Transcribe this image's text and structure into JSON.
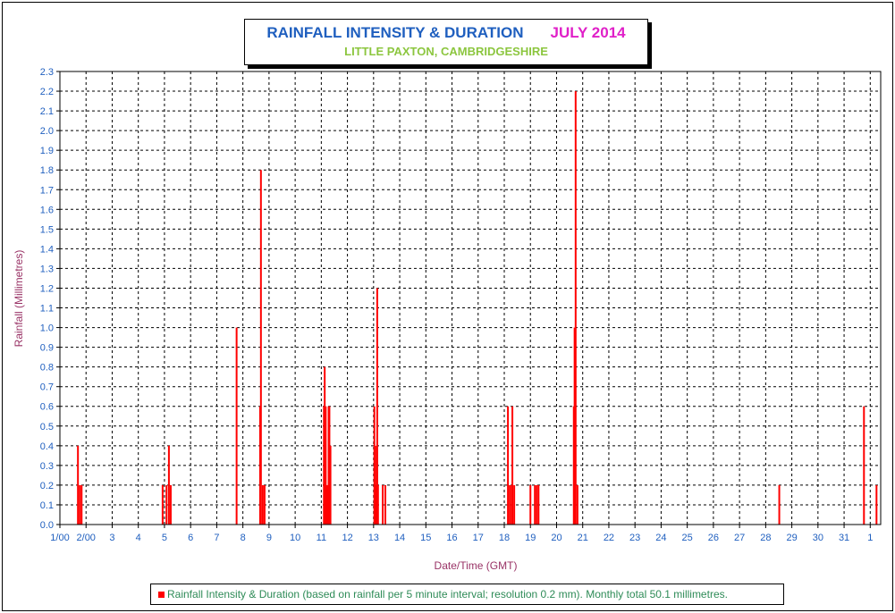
{
  "title": {
    "main": "RAINFALL INTENSITY & DURATION",
    "month": "JULY 2014",
    "subtitle": "LITTLE PAXTON, CAMBRIDGESHIRE"
  },
  "legend": {
    "text": "Rainfall Intensity & Duration (based on rainfall per 5 minute interval; resolution 0.2 mm). Monthly total 50.1 millimetres."
  },
  "colors": {
    "bars": "#ff0000",
    "title_blue": "#1f5fbf",
    "title_magenta": "#e020c8",
    "subtitle_green": "#8cc63f",
    "tick_blue": "#1f5fbf",
    "axis_label": "#993366",
    "legend_text": "#2e8b57"
  },
  "chart_data": {
    "type": "bar",
    "title": "RAINFALL INTENSITY & DURATION JULY 2014",
    "subtitle": "LITTLE PAXTON, CAMBRIDGESHIRE",
    "xlabel": "Date/Time (GMT)",
    "ylabel": "Rainfall (Millimetres)",
    "ylim": [
      0,
      2.3
    ],
    "yticks": [
      0.0,
      0.1,
      0.2,
      0.3,
      0.4,
      0.5,
      0.6,
      0.7,
      0.8,
      0.9,
      1.0,
      1.1,
      1.2,
      1.3,
      1.4,
      1.5,
      1.6,
      1.7,
      1.8,
      1.9,
      2.0,
      2.1,
      2.2,
      2.3
    ],
    "xlim_days": [
      1,
      32.4
    ],
    "xticks": [
      {
        "day": 1,
        "label": "1/00"
      },
      {
        "day": 2,
        "label": "2/00"
      },
      {
        "day": 3,
        "label": "3"
      },
      {
        "day": 4,
        "label": "4"
      },
      {
        "day": 5,
        "label": "5"
      },
      {
        "day": 6,
        "label": "6"
      },
      {
        "day": 7,
        "label": "7"
      },
      {
        "day": 8,
        "label": "8"
      },
      {
        "day": 9,
        "label": "9"
      },
      {
        "day": 10,
        "label": "10"
      },
      {
        "day": 11,
        "label": "11"
      },
      {
        "day": 12,
        "label": "12"
      },
      {
        "day": 13,
        "label": "13"
      },
      {
        "day": 14,
        "label": "14"
      },
      {
        "day": 15,
        "label": "15"
      },
      {
        "day": 16,
        "label": "16"
      },
      {
        "day": 17,
        "label": "17"
      },
      {
        "day": 18,
        "label": "18"
      },
      {
        "day": 19,
        "label": "19"
      },
      {
        "day": 20,
        "label": "20"
      },
      {
        "day": 21,
        "label": "21"
      },
      {
        "day": 22,
        "label": "22"
      },
      {
        "day": 23,
        "label": "23"
      },
      {
        "day": 24,
        "label": "24"
      },
      {
        "day": 25,
        "label": "25"
      },
      {
        "day": 26,
        "label": "26"
      },
      {
        "day": 27,
        "label": "27"
      },
      {
        "day": 28,
        "label": "28"
      },
      {
        "day": 29,
        "label": "29"
      },
      {
        "day": 30,
        "label": "30"
      },
      {
        "day": 31,
        "label": "31"
      },
      {
        "day": 32,
        "label": "1"
      }
    ],
    "grid": true,
    "legend_position": "bottom",
    "series": [
      {
        "name": "Rainfall Intensity & Duration",
        "points": [
          [
            1.69,
            0.4
          ],
          [
            1.76,
            0.2
          ],
          [
            1.83,
            0.2
          ],
          [
            4.93,
            0.2
          ],
          [
            5.08,
            0.2
          ],
          [
            5.17,
            0.4
          ],
          [
            5.24,
            0.2
          ],
          [
            7.76,
            1.0
          ],
          [
            8.66,
            0.6
          ],
          [
            8.69,
            1.8
          ],
          [
            8.76,
            0.2
          ],
          [
            8.83,
            0.2
          ],
          [
            11.1,
            0.6
          ],
          [
            11.13,
            0.8
          ],
          [
            11.17,
            0.6
          ],
          [
            11.2,
            0.2
          ],
          [
            11.24,
            0.2
          ],
          [
            11.28,
            0.6
          ],
          [
            11.31,
            0.6
          ],
          [
            11.35,
            0.4
          ],
          [
            13.03,
            0.6
          ],
          [
            13.07,
            0.4
          ],
          [
            13.1,
            0.2
          ],
          [
            13.14,
            1.2
          ],
          [
            13.17,
            0.2
          ],
          [
            13.35,
            0.2
          ],
          [
            13.45,
            0.2
          ],
          [
            18.14,
            0.6
          ],
          [
            18.21,
            0.2
          ],
          [
            18.28,
            0.2
          ],
          [
            18.31,
            0.6
          ],
          [
            18.38,
            0.2
          ],
          [
            19.0,
            0.2
          ],
          [
            19.17,
            0.2
          ],
          [
            19.24,
            0.2
          ],
          [
            19.31,
            0.2
          ],
          [
            20.66,
            0.6
          ],
          [
            20.69,
            1.0
          ],
          [
            20.73,
            2.2
          ],
          [
            20.8,
            0.2
          ],
          [
            28.52,
            0.2
          ],
          [
            31.76,
            0.6
          ],
          [
            32.24,
            0.2
          ]
        ]
      }
    ]
  }
}
